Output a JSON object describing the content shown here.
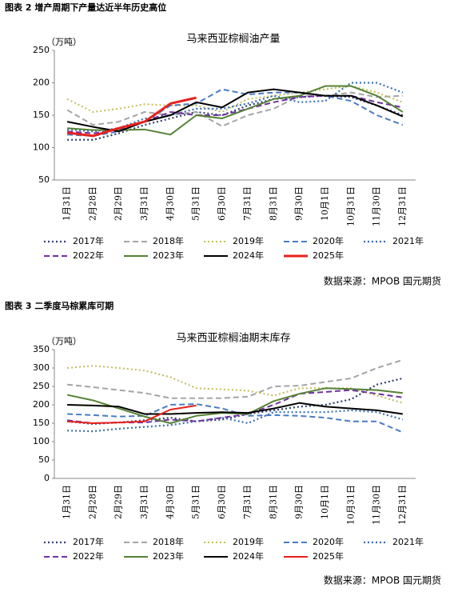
{
  "chart_data": [
    {
      "type": "line",
      "caption": "图表 2  增产周期下产量达近半年历史高位",
      "title": "马来西亚棕榈油产量",
      "y_unit": "（万吨）",
      "source": "数据来源：MPOB 国元期货",
      "categories": [
        "1月31日",
        "2月28日",
        "2月29日",
        "3月31日",
        "4月30日",
        "5月31日",
        "6月30日",
        "7月31日",
        "8月31日",
        "9月30日",
        "10月1日",
        "10月31日",
        "11月30日",
        "12月31日"
      ],
      "ylim": [
        50,
        250
      ],
      "yticks": [
        50,
        100,
        150,
        200,
        250
      ],
      "grid": false,
      "series": [
        {
          "name": "2017年",
          "color": "#2f3f6f",
          "style": "dotted",
          "width": 2.2,
          "values": [
            112,
            112,
            122,
            135,
            145,
            155,
            150,
            165,
            175,
            178,
            180,
            178,
            165,
            150
          ]
        },
        {
          "name": "2018年",
          "color": "#a5a5a5",
          "style": "dashed",
          "width": 2,
          "values": [
            158,
            135,
            140,
            155,
            150,
            155,
            133,
            150,
            160,
            180,
            180,
            185,
            178,
            180
          ]
        },
        {
          "name": "2019年",
          "color": "#c4bd5a",
          "style": "dotted",
          "width": 2,
          "values": [
            175,
            155,
            160,
            167,
            165,
            165,
            155,
            175,
            180,
            185,
            190,
            195,
            185,
            170
          ]
        },
        {
          "name": "2020年",
          "color": "#4a7cc4",
          "style": "dashed",
          "width": 2,
          "values": [
            120,
            118,
            125,
            140,
            165,
            168,
            190,
            182,
            185,
            185,
            180,
            172,
            150,
            135
          ]
        },
        {
          "name": "2021年",
          "color": "#3a6fb0",
          "style": "dotted",
          "width": 2.2,
          "values": [
            128,
            125,
            130,
            145,
            150,
            160,
            160,
            168,
            180,
            170,
            172,
            200,
            200,
            185
          ]
        },
        {
          "name": "2022年",
          "color": "#7030a0",
          "style": "dashed",
          "width": 2,
          "values": [
            125,
            122,
            128,
            140,
            155,
            150,
            150,
            160,
            170,
            178,
            180,
            180,
            170,
            162
          ]
        },
        {
          "name": "2023年",
          "color": "#548235",
          "style": "solid",
          "width": 2,
          "values": [
            130,
            127,
            127,
            128,
            120,
            150,
            145,
            160,
            175,
            180,
            195,
            195,
            180,
            155
          ]
        },
        {
          "name": "2024年",
          "color": "#000000",
          "style": "solid",
          "width": 2,
          "values": [
            140,
            132,
            125,
            140,
            150,
            170,
            162,
            185,
            190,
            185,
            180,
            180,
            165,
            148
          ]
        },
        {
          "name": "2025年",
          "color": "#e8211c",
          "style": "solid",
          "width": 3,
          "values": [
            123,
            118,
            130,
            140,
            168,
            177,
            null,
            null,
            null,
            null,
            null,
            null,
            null,
            null
          ]
        }
      ]
    },
    {
      "type": "line",
      "caption": "图表 3  二季度马棕累库可期",
      "title": "马来西亚棕榈油期末库存",
      "y_unit": "（万吨）",
      "source": "数据来源：MPOB 国元期货",
      "categories": [
        "1月31日",
        "2月28日",
        "2月29日",
        "3月31日",
        "4月30日",
        "5月31日",
        "6月30日",
        "7月31日",
        "8月31日",
        "9月30日",
        "10月1日",
        "10月31日",
        "11月30日",
        "12月31日"
      ],
      "ylim": [
        0,
        350
      ],
      "yticks": [
        0,
        50,
        100,
        150,
        200,
        250,
        300,
        350
      ],
      "grid": false,
      "series": [
        {
          "name": "2017年",
          "color": "#2f3f6f",
          "style": "dotted",
          "width": 2.2,
          "values": [
            155,
            148,
            152,
            158,
            165,
            155,
            160,
            175,
            185,
            195,
            200,
            215,
            255,
            272
          ]
        },
        {
          "name": "2018年",
          "color": "#a5a5a5",
          "style": "dashed",
          "width": 2,
          "values": [
            255,
            248,
            240,
            232,
            218,
            218,
            218,
            222,
            250,
            252,
            262,
            272,
            300,
            322
          ]
        },
        {
          "name": "2019年",
          "color": "#c4bd5a",
          "style": "dotted",
          "width": 2,
          "values": [
            300,
            306,
            300,
            293,
            275,
            245,
            242,
            238,
            225,
            245,
            245,
            245,
            225,
            205
          ]
        },
        {
          "name": "2020年",
          "color": "#4a7cc4",
          "style": "dashed",
          "width": 2,
          "values": [
            175,
            172,
            168,
            170,
            200,
            202,
            190,
            170,
            172,
            170,
            165,
            155,
            155,
            125
          ]
        },
        {
          "name": "2021年",
          "color": "#3a6fb0",
          "style": "dotted",
          "width": 2.2,
          "values": [
            130,
            128,
            135,
            140,
            145,
            155,
            165,
            150,
            180,
            180,
            180,
            185,
            180,
            160
          ]
        },
        {
          "name": "2022年",
          "color": "#7030a0",
          "style": "dashed",
          "width": 2,
          "values": [
            158,
            150,
            152,
            152,
            160,
            155,
            165,
            175,
            200,
            230,
            235,
            240,
            230,
            220
          ]
        },
        {
          "name": "2023年",
          "color": "#548235",
          "style": "solid",
          "width": 2,
          "values": [
            227,
            212,
            190,
            168,
            150,
            170,
            178,
            175,
            210,
            230,
            245,
            243,
            240,
            232
          ]
        },
        {
          "name": "2024年",
          "color": "#000000",
          "style": "solid",
          "width": 2,
          "values": [
            200,
            198,
            195,
            175,
            175,
            178,
            180,
            178,
            190,
            205,
            195,
            190,
            185,
            175
          ]
        },
        {
          "name": "2025年",
          "color": "#e8211c",
          "style": "solid",
          "width": 2,
          "values": [
            155,
            150,
            152,
            155,
            187,
            198,
            null,
            null,
            null,
            null,
            null,
            null,
            null,
            null
          ]
        }
      ]
    }
  ]
}
